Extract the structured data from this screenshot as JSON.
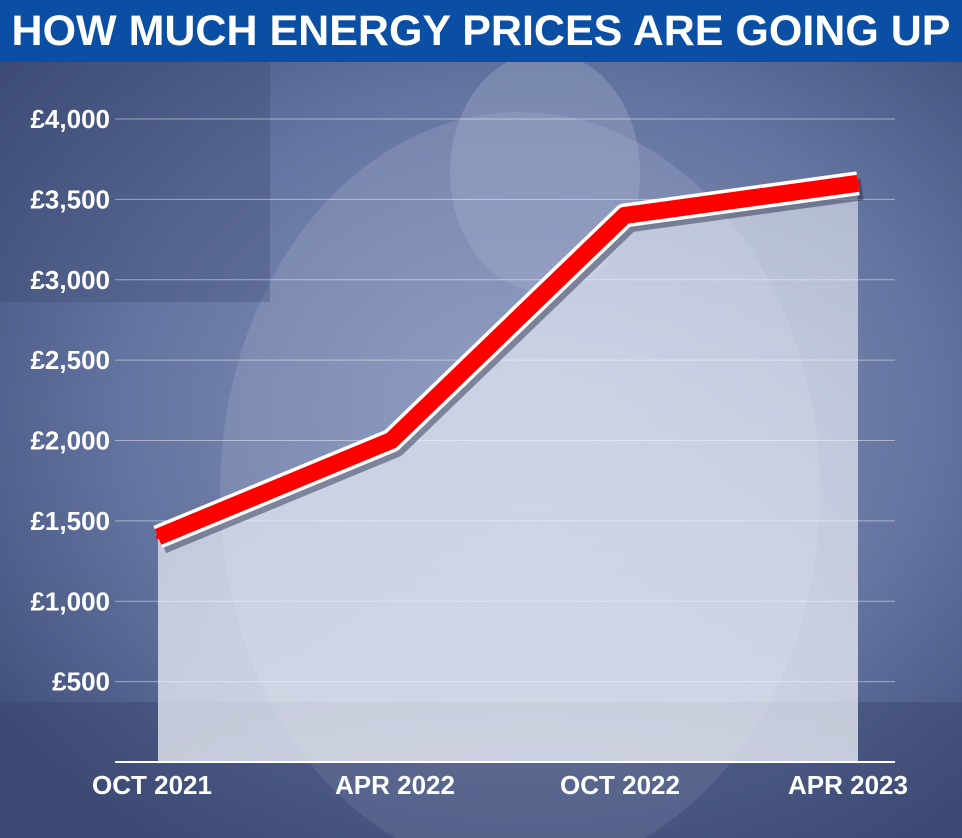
{
  "header": {
    "title": "HOW MUCH ENERGY PRICES ARE GOING UP"
  },
  "colors": {
    "title_bar": "#0a4fa3",
    "line": "#ff0000",
    "background_tint": "#5a6a94",
    "area_fill": "#e8ecf4"
  },
  "chart_data": {
    "type": "area",
    "title": "HOW MUCH ENERGY PRICES ARE GOING UP",
    "xlabel": "",
    "ylabel": "",
    "categories": [
      "OCT 2021",
      "APR 2022",
      "OCT 2022",
      "APR 2023"
    ],
    "values": [
      1400,
      2000,
      3400,
      3600
    ],
    "ylim": [
      0,
      4000
    ],
    "yticks": [
      500,
      1000,
      1500,
      2000,
      2500,
      3000,
      3500,
      4000
    ],
    "ytick_labels": [
      "£500",
      "£1,000",
      "£1,500",
      "£2,000",
      "£2,500",
      "£3,000",
      "£3,500",
      "£4,000"
    ],
    "grid": true,
    "legend": "none"
  }
}
